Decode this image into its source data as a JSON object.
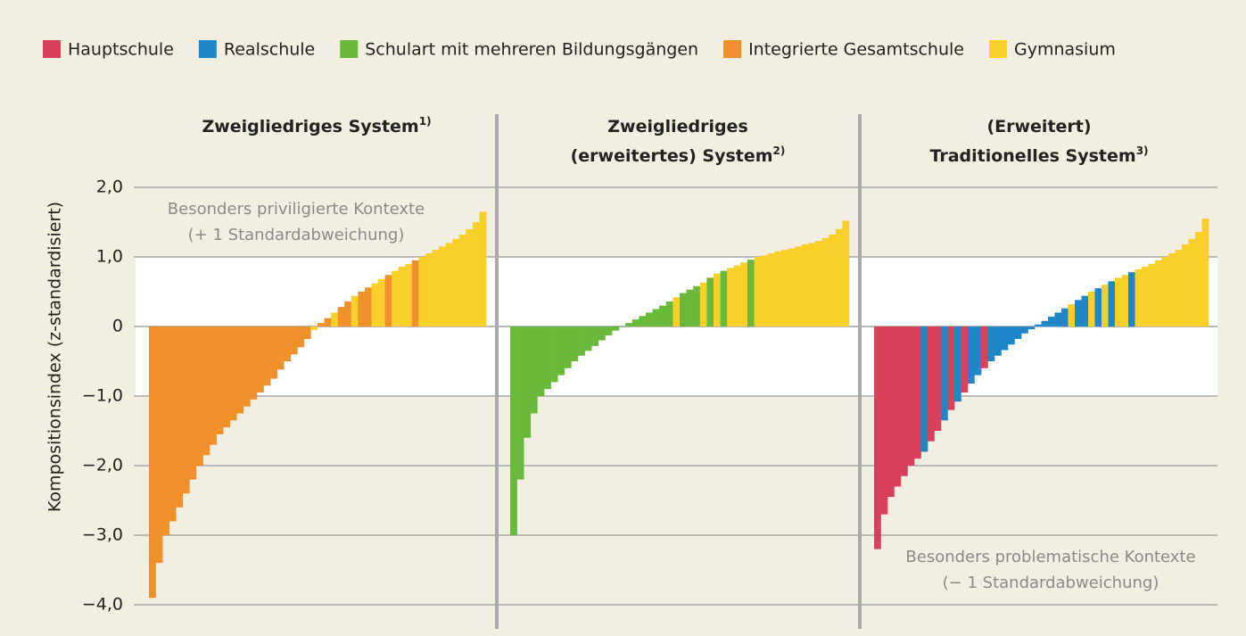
{
  "chart_data": {
    "type": "bar",
    "ylabel": "Kompositionsindex (z-standardisiert)",
    "ylim": [
      -4,
      2
    ],
    "yticks": [
      {
        "value": 2,
        "label": "2,0"
      },
      {
        "value": 1,
        "label": "1,0"
      },
      0,
      {
        "value": -1,
        "label": "−1,0"
      },
      {
        "value": -2,
        "label": "−2,0"
      },
      {
        "value": -3,
        "label": "−3,0"
      },
      {
        "value": -4,
        "label": "−4,0"
      }
    ],
    "grid": true,
    "legend": [
      {
        "name": "Hauptschule",
        "color": "#d9415a"
      },
      {
        "name": "Realschule",
        "color": "#1f86c8"
      },
      {
        "name": "Schulart mit mehreren Bildungsgängen",
        "color": "#6ab93c"
      },
      {
        "name": "Integrierte Gesamtschule",
        "color": "#f0902a"
      },
      {
        "name": "Gymnasium",
        "color": "#f9cf2a"
      }
    ],
    "panels": [
      {
        "title": [
          "Zweigliedriges System"
        ],
        "note": "1)",
        "annotation": [
          "Besonders priviligierte Kontexte",
          "(+ 1 Standardabweichung)"
        ],
        "values": [
          -3.9,
          -3.4,
          -3.0,
          -2.8,
          -2.6,
          -2.4,
          -2.2,
          -2.0,
          -1.85,
          -1.7,
          -1.55,
          -1.45,
          -1.35,
          -1.25,
          -1.15,
          -1.05,
          -0.95,
          -0.85,
          -0.75,
          -0.62,
          -0.5,
          -0.4,
          -0.3,
          -0.18,
          -0.05,
          0.05,
          0.12,
          0.2,
          0.28,
          0.36,
          0.44,
          0.5,
          0.56,
          0.62,
          0.68,
          0.74,
          0.8,
          0.86,
          0.9,
          0.95,
          1.0,
          1.05,
          1.1,
          1.15,
          1.2,
          1.26,
          1.32,
          1.4,
          1.5,
          1.65
        ],
        "school_type": [
          3,
          3,
          3,
          3,
          3,
          3,
          3,
          3,
          3,
          3,
          3,
          3,
          3,
          3,
          3,
          3,
          3,
          3,
          3,
          3,
          3,
          3,
          3,
          3,
          4,
          3,
          3,
          4,
          3,
          3,
          4,
          3,
          3,
          4,
          4,
          3,
          4,
          4,
          4,
          3,
          4,
          4,
          4,
          4,
          4,
          4,
          4,
          4,
          4,
          4
        ]
      },
      {
        "title": [
          "Zweigliedriges",
          "(erweitertes) System"
        ],
        "note": "2)",
        "values": [
          -3.0,
          -2.2,
          -1.6,
          -1.25,
          -1.0,
          -0.9,
          -0.8,
          -0.7,
          -0.6,
          -0.5,
          -0.42,
          -0.35,
          -0.28,
          -0.2,
          -0.13,
          -0.06,
          0.0,
          0.05,
          0.1,
          0.15,
          0.2,
          0.25,
          0.3,
          0.36,
          0.42,
          0.48,
          0.53,
          0.58,
          0.63,
          0.7,
          0.76,
          0.8,
          0.84,
          0.88,
          0.92,
          0.96,
          1.0,
          1.02,
          1.05,
          1.08,
          1.1,
          1.12,
          1.15,
          1.18,
          1.2,
          1.23,
          1.27,
          1.32,
          1.4,
          1.52
        ],
        "school_type": [
          2,
          2,
          2,
          2,
          2,
          2,
          2,
          2,
          2,
          2,
          2,
          2,
          2,
          2,
          2,
          2,
          2,
          2,
          2,
          2,
          2,
          2,
          2,
          2,
          4,
          2,
          2,
          2,
          4,
          2,
          4,
          2,
          4,
          4,
          4,
          2,
          4,
          4,
          4,
          4,
          4,
          4,
          4,
          4,
          4,
          4,
          4,
          4,
          4,
          4
        ]
      },
      {
        "title": [
          "(Erweitert)",
          "Traditionelles System"
        ],
        "note": "3)",
        "annotation": [
          "Besonders problematische Kontexte",
          "(− 1 Standardabweichung)"
        ],
        "values": [
          -3.2,
          -2.7,
          -2.45,
          -2.3,
          -2.15,
          -2.0,
          -1.9,
          -1.8,
          -1.65,
          -1.5,
          -1.35,
          -1.2,
          -1.08,
          -0.95,
          -0.82,
          -0.7,
          -0.6,
          -0.5,
          -0.42,
          -0.34,
          -0.26,
          -0.18,
          -0.1,
          -0.04,
          0.03,
          0.08,
          0.14,
          0.2,
          0.26,
          0.32,
          0.38,
          0.44,
          0.5,
          0.55,
          0.6,
          0.65,
          0.7,
          0.74,
          0.78,
          0.82,
          0.86,
          0.9,
          0.95,
          1.0,
          1.05,
          1.1,
          1.18,
          1.26,
          1.36,
          1.55
        ],
        "school_type": [
          0,
          0,
          0,
          0,
          0,
          0,
          0,
          1,
          0,
          0,
          1,
          0,
          1,
          0,
          1,
          1,
          0,
          1,
          1,
          1,
          1,
          1,
          1,
          1,
          1,
          1,
          1,
          1,
          1,
          4,
          1,
          1,
          4,
          1,
          4,
          1,
          4,
          4,
          1,
          4,
          4,
          4,
          4,
          4,
          4,
          4,
          4,
          4,
          4,
          4
        ]
      }
    ]
  }
}
